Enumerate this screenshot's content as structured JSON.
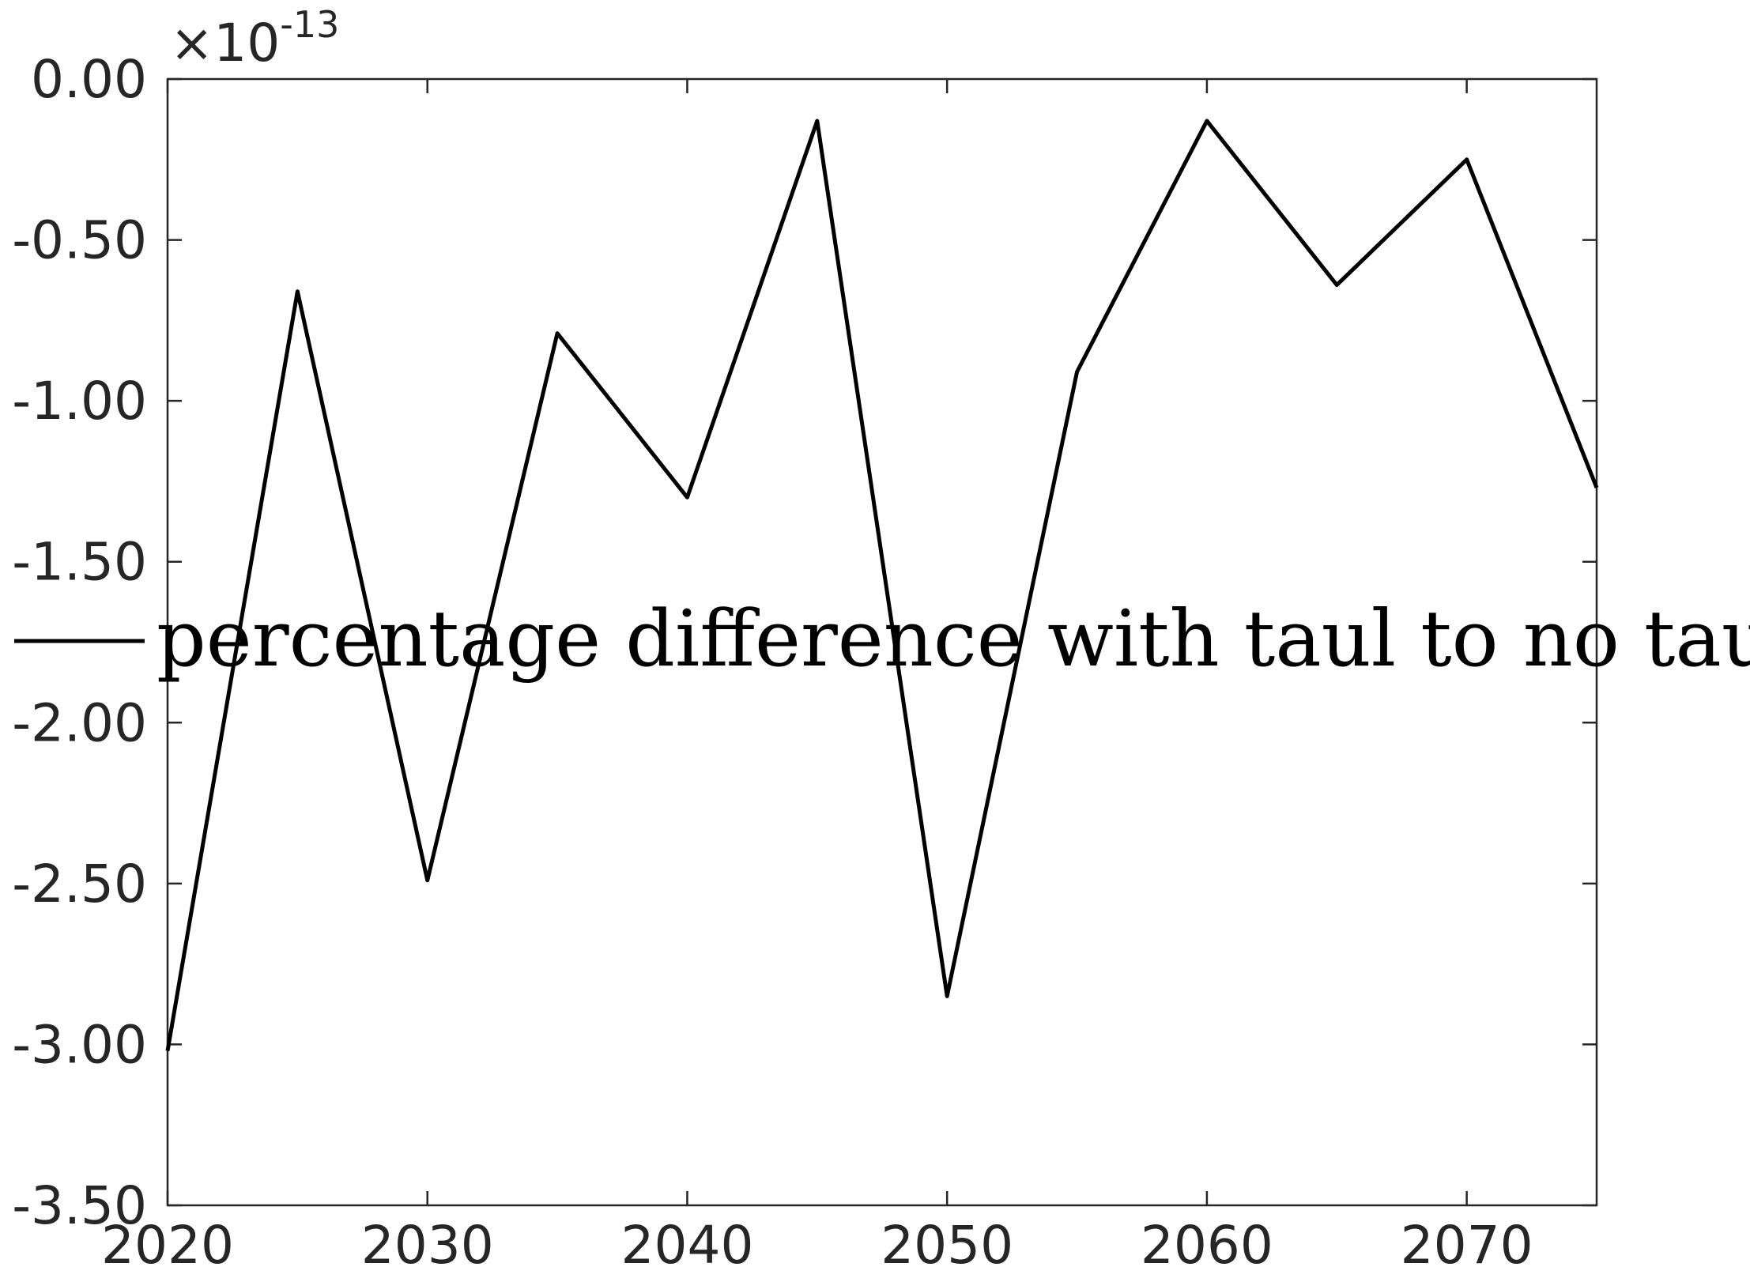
{
  "chart_data": {
    "type": "line",
    "title": "",
    "xlabel": "",
    "ylabel": "",
    "x": [
      2020,
      2025,
      2030,
      2035,
      2040,
      2045,
      2050,
      2055,
      2060,
      2065,
      2070,
      2075
    ],
    "series": [
      {
        "name": "percentage difference with taul to no taul",
        "values": [
          -3.02,
          -0.66,
          -2.49,
          -0.79,
          -1.3,
          -0.13,
          -2.85,
          -0.91,
          -0.13,
          -0.64,
          -0.25,
          -1.27
        ],
        "color": "#000000"
      }
    ],
    "y_multiplier": {
      "base": "×10",
      "exponent": "-13"
    },
    "xlim": [
      2020,
      2075
    ],
    "ylim": [
      -3.5,
      0
    ],
    "x_ticks": [
      2020,
      2030,
      2040,
      2050,
      2060,
      2070
    ],
    "x_tick_labels": [
      "2020",
      "2030",
      "2040",
      "2050",
      "2060",
      "2070"
    ],
    "y_ticks": [
      0,
      -0.5,
      -1,
      -1.5,
      -2,
      -2.5,
      -3,
      -3.5
    ],
    "y_tick_labels": [
      "0.00",
      "-0.50",
      "-1.00",
      "-1.50",
      "-2.00",
      "-2.50",
      "-3.00",
      "-3.50"
    ],
    "grid": false,
    "legend_position": "center-left",
    "axis_color": "#262626"
  }
}
